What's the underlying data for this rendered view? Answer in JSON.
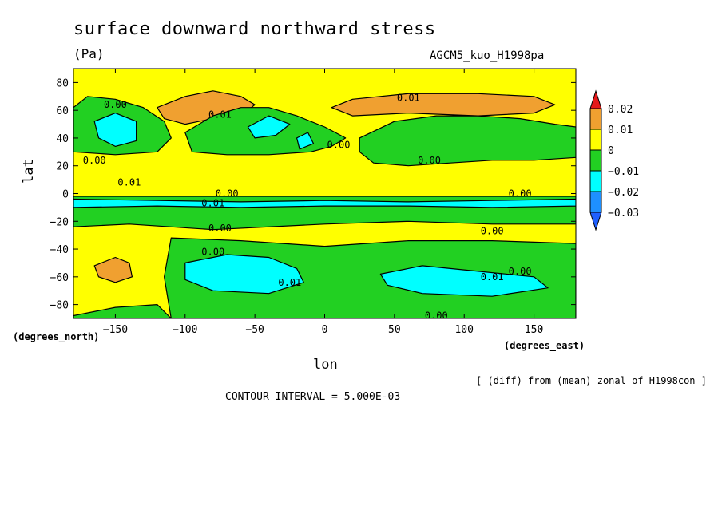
{
  "chart_data": {
    "type": "heatmap",
    "title": "surface downward northward stress",
    "units": "(Pa)",
    "run_id": "AGCM5_kuo_H1998pa",
    "xlabel": "lon",
    "ylabel": "lat",
    "x_unit": "(degrees_east)",
    "y_unit": "(degrees_north)",
    "xlim": [
      -180,
      180
    ],
    "ylim": [
      -90,
      90
    ],
    "x_ticks": [
      -150,
      -100,
      -50,
      0,
      50,
      100,
      150
    ],
    "y_ticks": [
      -80,
      -60,
      -40,
      -20,
      0,
      20,
      40,
      60,
      80
    ],
    "x_tick_labels": [
      "-150",
      "-100",
      "-50",
      "0",
      "50",
      "100",
      "150"
    ],
    "y_tick_labels": [
      "-80",
      "-60",
      "-40",
      "-20",
      "0",
      "20",
      "40",
      "60",
      "80"
    ],
    "contour_interval_text": "CONTOUR INTERVAL = 5.000E-03",
    "note": "[ (diff) from (mean) zonal of H1998con ]",
    "colorbar": {
      "levels": [
        0.02,
        0.01,
        0,
        -0.01,
        -0.02,
        -0.03
      ],
      "labels": [
        "0.02",
        "0.01",
        "0",
        "-0.01",
        "-0.02",
        "-0.03"
      ],
      "colors": [
        "#e6191a",
        "#f0a030",
        "#ffff00",
        "#22d022",
        "#00ffff",
        "#1e90ff",
        "#2060ff"
      ]
    },
    "background_color": "#ffff00",
    "regions": [
      {
        "class": "positive",
        "color": "#f0a030",
        "points": [
          [
            -120,
            62
          ],
          [
            -100,
            70
          ],
          [
            -80,
            74
          ],
          [
            -60,
            70
          ],
          [
            -50,
            64
          ],
          [
            -60,
            56
          ],
          [
            -80,
            54
          ],
          [
            -100,
            50
          ],
          [
            -115,
            54
          ]
        ]
      },
      {
        "class": "positive",
        "color": "#f0a030",
        "points": [
          [
            5,
            62
          ],
          [
            20,
            68
          ],
          [
            60,
            72
          ],
          [
            110,
            72
          ],
          [
            150,
            70
          ],
          [
            165,
            64
          ],
          [
            150,
            58
          ],
          [
            110,
            56
          ],
          [
            60,
            58
          ],
          [
            20,
            56
          ]
        ]
      },
      {
        "class": "positive",
        "color": "#f0a030",
        "points": [
          [
            -165,
            -52
          ],
          [
            -150,
            -46
          ],
          [
            -140,
            -50
          ],
          [
            -138,
            -60
          ],
          [
            -150,
            -64
          ],
          [
            -162,
            -60
          ]
        ]
      },
      {
        "class": "negative",
        "color": "#22d022",
        "points": [
          [
            -180,
            62
          ],
          [
            -170,
            70
          ],
          [
            -150,
            68
          ],
          [
            -130,
            62
          ],
          [
            -115,
            52
          ],
          [
            -110,
            40
          ],
          [
            -120,
            30
          ],
          [
            -150,
            28
          ],
          [
            -180,
            30
          ]
        ]
      },
      {
        "class": "negative",
        "color": "#22d022",
        "points": [
          [
            -100,
            44
          ],
          [
            -80,
            56
          ],
          [
            -60,
            62
          ],
          [
            -40,
            62
          ],
          [
            -20,
            56
          ],
          [
            0,
            48
          ],
          [
            15,
            40
          ],
          [
            5,
            34
          ],
          [
            -10,
            30
          ],
          [
            -40,
            28
          ],
          [
            -70,
            28
          ],
          [
            -95,
            30
          ]
        ]
      },
      {
        "class": "negative",
        "color": "#22d022",
        "points": [
          [
            25,
            40
          ],
          [
            50,
            52
          ],
          [
            80,
            56
          ],
          [
            110,
            56
          ],
          [
            140,
            54
          ],
          [
            165,
            50
          ],
          [
            180,
            48
          ],
          [
            180,
            26
          ],
          [
            150,
            24
          ],
          [
            120,
            24
          ],
          [
            90,
            22
          ],
          [
            60,
            20
          ],
          [
            35,
            22
          ],
          [
            25,
            30
          ]
        ]
      },
      {
        "class": "negative",
        "color": "#22d022",
        "points": [
          [
            -180,
            -2
          ],
          [
            -100,
            -2
          ],
          [
            0,
            -2
          ],
          [
            100,
            -2
          ],
          [
            180,
            -2
          ],
          [
            180,
            -22
          ],
          [
            120,
            -22
          ],
          [
            60,
            -20
          ],
          [
            0,
            -22
          ],
          [
            -80,
            -26
          ],
          [
            -140,
            -22
          ],
          [
            -180,
            -24
          ]
        ]
      },
      {
        "class": "negative",
        "color": "#22d022",
        "points": [
          [
            -110,
            -32
          ],
          [
            -60,
            -34
          ],
          [
            0,
            -38
          ],
          [
            60,
            -34
          ],
          [
            120,
            -34
          ],
          [
            180,
            -36
          ],
          [
            180,
            -90
          ],
          [
            -110,
            -90
          ],
          [
            -115,
            -60
          ]
        ]
      },
      {
        "class": "negative",
        "color": "#22d022",
        "points": [
          [
            -180,
            -88
          ],
          [
            -180,
            -90
          ],
          [
            -110,
            -90
          ],
          [
            -120,
            -80
          ],
          [
            -150,
            -82
          ]
        ]
      },
      {
        "class": "negative2",
        "color": "#00ffff",
        "points": [
          [
            -165,
            52
          ],
          [
            -150,
            58
          ],
          [
            -135,
            52
          ],
          [
            -135,
            38
          ],
          [
            -150,
            34
          ],
          [
            -162,
            40
          ]
        ]
      },
      {
        "class": "negative2",
        "color": "#00ffff",
        "points": [
          [
            -55,
            48
          ],
          [
            -40,
            56
          ],
          [
            -25,
            50
          ],
          [
            -35,
            42
          ],
          [
            -50,
            40
          ]
        ]
      },
      {
        "class": "negative2",
        "color": "#00ffff",
        "points": [
          [
            -20,
            40
          ],
          [
            -12,
            44
          ],
          [
            -8,
            36
          ],
          [
            -18,
            32
          ]
        ]
      },
      {
        "class": "negative2",
        "color": "#00ffff",
        "points": [
          [
            -100,
            -50
          ],
          [
            -70,
            -44
          ],
          [
            -40,
            -46
          ],
          [
            -20,
            -54
          ],
          [
            -15,
            -64
          ],
          [
            -40,
            -72
          ],
          [
            -80,
            -70
          ],
          [
            -100,
            -62
          ]
        ]
      },
      {
        "class": "negative2",
        "color": "#00ffff",
        "points": [
          [
            40,
            -58
          ],
          [
            70,
            -52
          ],
          [
            110,
            -56
          ],
          [
            150,
            -60
          ],
          [
            160,
            -68
          ],
          [
            120,
            -74
          ],
          [
            70,
            -72
          ],
          [
            45,
            -66
          ]
        ]
      },
      {
        "class": "negative2",
        "color": "#00ffff",
        "points": [
          [
            -180,
            -4
          ],
          [
            -120,
            -5
          ],
          [
            -60,
            -6
          ],
          [
            0,
            -5
          ],
          [
            60,
            -6
          ],
          [
            120,
            -5
          ],
          [
            180,
            -4
          ],
          [
            180,
            -9
          ],
          [
            120,
            -10
          ],
          [
            60,
            -9
          ],
          [
            0,
            -9
          ],
          [
            -60,
            -10
          ],
          [
            -120,
            -9
          ],
          [
            -180,
            -10
          ]
        ]
      }
    ],
    "contour_labels": [
      {
        "text": "0.00",
        "lon": -150,
        "lat": 64
      },
      {
        "text": "0.01",
        "lon": -75,
        "lat": 57
      },
      {
        "text": "0.01",
        "lon": 60,
        "lat": 69
      },
      {
        "text": "0.00",
        "lon": 10,
        "lat": 35
      },
      {
        "text": "0.00",
        "lon": -165,
        "lat": 24
      },
      {
        "text": "0.00",
        "lon": 75,
        "lat": 24
      },
      {
        "text": "0.01",
        "lon": -140,
        "lat": 8
      },
      {
        "text": "0.00",
        "lon": -70,
        "lat": 0
      },
      {
        "text": "0.01",
        "lon": -80,
        "lat": -7
      },
      {
        "text": "0.00",
        "lon": 140,
        "lat": 0
      },
      {
        "text": "0.00",
        "lon": -75,
        "lat": -25
      },
      {
        "text": "0.00",
        "lon": 120,
        "lat": -27
      },
      {
        "text": "0.00",
        "lon": -80,
        "lat": -42
      },
      {
        "text": "0.01",
        "lon": -25,
        "lat": -64
      },
      {
        "text": "0.01",
        "lon": 120,
        "lat": -60
      },
      {
        "text": "0.00",
        "lon": 140,
        "lat": -56
      },
      {
        "text": "0.00",
        "lon": 80,
        "lat": -88
      }
    ]
  }
}
